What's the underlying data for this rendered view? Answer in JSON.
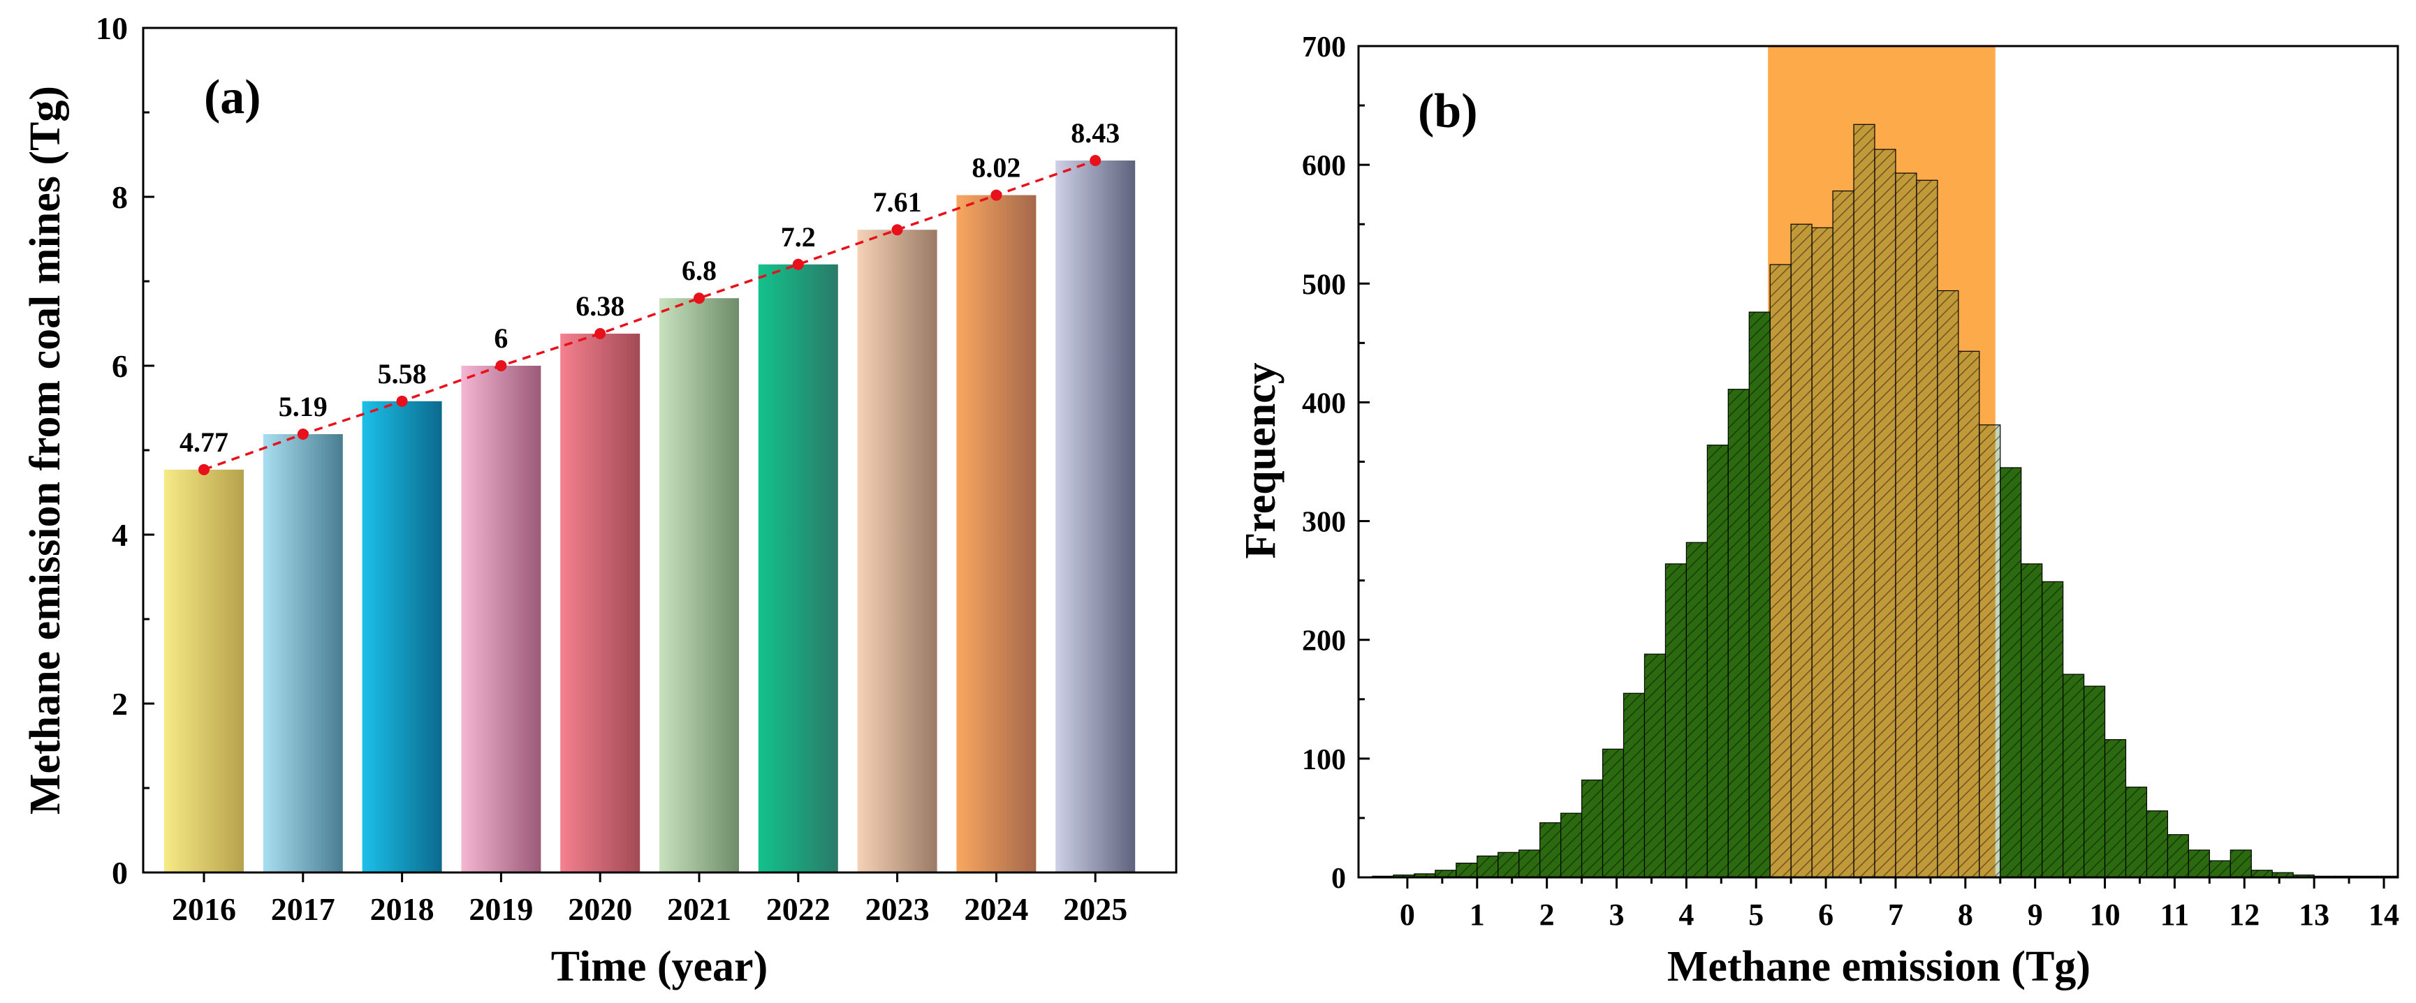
{
  "chart_data": [
    {
      "type": "bar",
      "panel_label": "(a)",
      "title": "",
      "xlabel": "Time (year)",
      "ylabel": "Methane emission from coal mines (Tg)",
      "categories": [
        "2016",
        "2017",
        "2018",
        "2019",
        "2020",
        "2021",
        "2022",
        "2023",
        "2024",
        "2025"
      ],
      "values": [
        4.77,
        5.19,
        5.58,
        6.0,
        6.38,
        6.8,
        7.2,
        7.61,
        8.02,
        8.43
      ],
      "data_labels": [
        "4.77",
        "5.19",
        "5.58",
        "6",
        "6.38",
        "6.8",
        "7.2",
        "7.61",
        "8.02",
        "8.43"
      ],
      "ylim": [
        0,
        10
      ],
      "yticks": [
        0,
        2,
        4,
        6,
        8,
        10
      ],
      "grid": false,
      "trend_line": {
        "style": "dashed",
        "color": "#e8101a",
        "markers": true
      },
      "bar_colors": [
        [
          "#f7ea86",
          "#b6a24c"
        ],
        [
          "#a8dff0",
          "#4a7c92"
        ],
        [
          "#1cc0e8",
          "#0b6a8e"
        ],
        [
          "#f4b6d2",
          "#9a5a78"
        ],
        [
          "#f4818e",
          "#a24a56"
        ],
        [
          "#c7e2bd",
          "#6e8c69"
        ],
        [
          "#12c28c",
          "#2a7a68"
        ],
        [
          "#f5d2b6",
          "#9a7a66"
        ],
        [
          "#f9a760",
          "#a4684a"
        ],
        [
          "#cdd0e6",
          "#5e627c"
        ]
      ]
    },
    {
      "type": "histogram",
      "panel_label": "(b)",
      "title": "",
      "xlabel": "Methane emission (Tg)",
      "ylabel": "Frequency",
      "xlim": [
        -0.7,
        14.2
      ],
      "ylim": [
        0,
        700
      ],
      "xticks": [
        0,
        1,
        2,
        3,
        4,
        5,
        6,
        7,
        8,
        9,
        10,
        11,
        12,
        13,
        14
      ],
      "yticks": [
        0,
        100,
        200,
        300,
        400,
        500,
        600,
        700
      ],
      "bin_start": -0.5,
      "bin_width": 0.3,
      "counts": [
        1,
        2,
        3,
        6,
        12,
        18,
        21,
        23,
        46,
        54,
        82,
        108,
        155,
        188,
        264,
        282,
        364,
        411,
        476,
        516,
        550,
        547,
        578,
        634,
        613,
        593,
        587,
        494,
        443,
        381,
        345,
        264,
        249,
        171,
        161,
        116,
        76,
        56,
        36,
        23,
        14,
        23,
        6,
        4,
        2,
        1,
        1,
        1,
        1
      ],
      "highlight_range": [
        5.17,
        8.43
      ],
      "bar_color": "#2c6a10",
      "highlight_color": "#fdab4a",
      "grid": false
    }
  ]
}
